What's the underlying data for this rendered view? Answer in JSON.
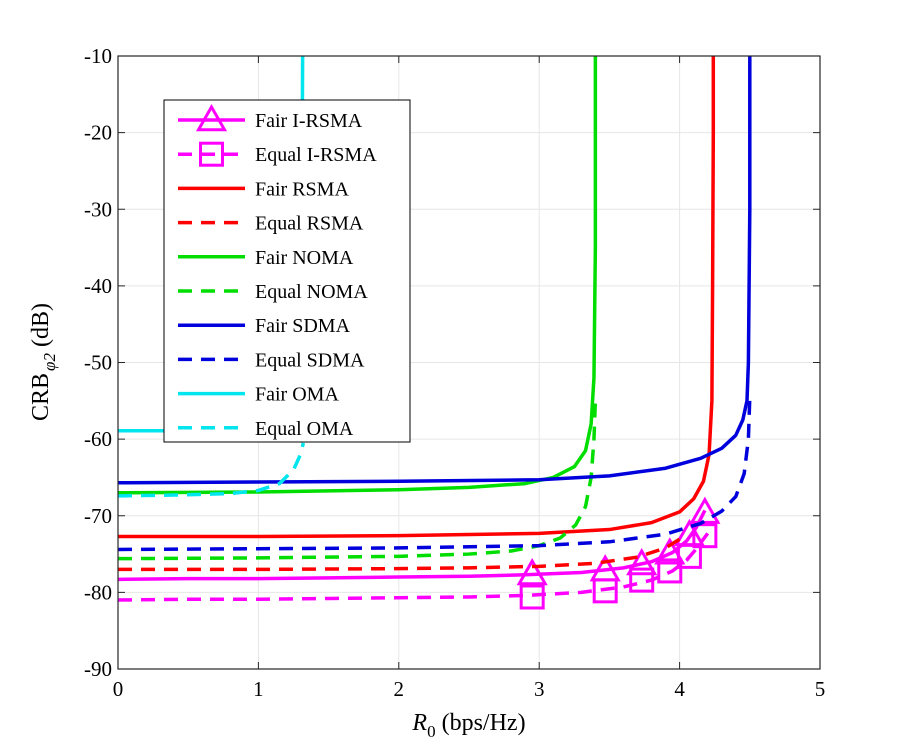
{
  "chart_data": {
    "type": "line",
    "title": "",
    "xlabel": {
      "symbol": "R",
      "subscript": "0",
      "unit": "(bps/Hz)"
    },
    "ylabel": {
      "prefix": "CRB",
      "subscript": "φ2",
      "unit": "(dB)"
    },
    "xlim": [
      0,
      5
    ],
    "ylim": [
      -90,
      -10
    ],
    "xticks": [
      0,
      1,
      2,
      3,
      4,
      5
    ],
    "yticks": [
      -10,
      -20,
      -30,
      -40,
      -50,
      -60,
      -70,
      -80,
      -90
    ],
    "grid": true,
    "legend_position": "top-left",
    "series": [
      {
        "name": "Fair I-RSMA",
        "color": "#ff00ff",
        "dash": "solid",
        "marker": "triangle",
        "x": [
          0,
          0.5,
          1,
          1.5,
          2,
          2.5,
          2.9,
          3.3,
          3.6,
          3.8,
          3.95,
          4.05,
          4.12,
          4.18
        ],
        "y": [
          -78.3,
          -78.2,
          -78.2,
          -78.1,
          -78.0,
          -77.9,
          -77.7,
          -77.4,
          -76.8,
          -76.0,
          -74.8,
          -73.3,
          -71.5,
          -69.3
        ],
        "markers_x": [
          2.95,
          3.47,
          3.73,
          3.93,
          4.07,
          4.18
        ],
        "markers_y": [
          -77.6,
          -77.1,
          -76.3,
          -74.9,
          -72.5,
          -69.6
        ]
      },
      {
        "name": "Equal I-RSMA",
        "color": "#ff00ff",
        "dash": "dash",
        "marker": "square",
        "x": [
          0,
          0.5,
          1,
          1.5,
          2,
          2.5,
          2.9,
          3.3,
          3.6,
          3.8,
          3.95,
          4.05,
          4.12,
          4.2
        ],
        "y": [
          -81.0,
          -80.9,
          -80.9,
          -80.8,
          -80.7,
          -80.6,
          -80.4,
          -80.0,
          -79.3,
          -78.4,
          -77.2,
          -75.8,
          -74.3,
          -72.3
        ],
        "markers_x": [
          2.95,
          3.47,
          3.73,
          3.93,
          4.07,
          4.18
        ],
        "markers_y": [
          -80.6,
          -79.8,
          -78.4,
          -77.2,
          -75.3,
          -72.6
        ]
      },
      {
        "name": "Fair RSMA",
        "color": "#ff0000",
        "dash": "solid",
        "marker": "none",
        "x": [
          0,
          1,
          2,
          3,
          3.5,
          3.8,
          4.0,
          4.1,
          4.17,
          4.21,
          4.23,
          4.235,
          4.24,
          4.24
        ],
        "y": [
          -72.7,
          -72.7,
          -72.6,
          -72.3,
          -71.8,
          -70.9,
          -69.5,
          -67.8,
          -65.5,
          -62.0,
          -55.0,
          -40.0,
          -20.0,
          -10.0
        ]
      },
      {
        "name": "Equal RSMA",
        "color": "#ff0000",
        "dash": "dash",
        "marker": "none",
        "x": [
          0,
          1,
          2,
          2.5,
          3,
          3.4,
          3.7,
          3.9,
          4.05
        ],
        "y": [
          -77.0,
          -77.0,
          -76.9,
          -76.8,
          -76.6,
          -76.2,
          -75.4,
          -74.2,
          -72.5
        ]
      },
      {
        "name": "Fair NOMA",
        "color": "#00dd00",
        "dash": "solid",
        "marker": "none",
        "x": [
          0,
          1,
          2,
          2.5,
          2.9,
          3.1,
          3.25,
          3.33,
          3.37,
          3.39,
          3.4,
          3.4
        ],
        "y": [
          -67.0,
          -66.9,
          -66.6,
          -66.3,
          -65.8,
          -65.0,
          -63.6,
          -61.5,
          -58.0,
          -52.0,
          -35.0,
          -10.0
        ]
      },
      {
        "name": "Equal NOMA",
        "color": "#00dd00",
        "dash": "dash",
        "marker": "none",
        "x": [
          0,
          1,
          2,
          2.5,
          2.8,
          3.0,
          3.15,
          3.26,
          3.33,
          3.37,
          3.39,
          3.4
        ],
        "y": [
          -75.6,
          -75.5,
          -75.3,
          -75.0,
          -74.6,
          -73.9,
          -72.9,
          -71.2,
          -68.8,
          -65.0,
          -60.0,
          -55.0
        ]
      },
      {
        "name": "Fair SDMA",
        "color": "#0000dd",
        "dash": "solid",
        "marker": "none",
        "x": [
          0,
          1,
          2,
          3,
          3.5,
          3.9,
          4.15,
          4.3,
          4.4,
          4.45,
          4.48,
          4.49,
          4.5,
          4.5
        ],
        "y": [
          -65.7,
          -65.6,
          -65.5,
          -65.3,
          -64.8,
          -63.8,
          -62.5,
          -61.2,
          -59.5,
          -57.5,
          -55.0,
          -50.0,
          -30.0,
          -10.0
        ]
      },
      {
        "name": "Equal SDMA",
        "color": "#0000dd",
        "dash": "dash",
        "marker": "none",
        "x": [
          0,
          1,
          2,
          3,
          3.5,
          3.9,
          4.15,
          4.3,
          4.4,
          4.46,
          4.49,
          4.5
        ],
        "y": [
          -74.4,
          -74.3,
          -74.2,
          -73.9,
          -73.4,
          -72.4,
          -71.0,
          -69.4,
          -67.5,
          -64.5,
          -60.0,
          -54.5
        ]
      },
      {
        "name": "Fair OMA",
        "color": "#00e5ee",
        "dash": "solid",
        "marker": "none",
        "x": [
          0,
          0.4,
          0.8,
          1.0,
          1.15,
          1.25,
          1.29,
          1.31,
          1.315
        ],
        "y": [
          -58.9,
          -58.9,
          -58.8,
          -58.6,
          -58.0,
          -56.0,
          -50.0,
          -30.0,
          -10.0
        ]
      },
      {
        "name": "Equal OMA",
        "color": "#00e5ee",
        "dash": "dash",
        "marker": "none",
        "x": [
          0,
          0.4,
          0.8,
          1.0,
          1.15,
          1.25,
          1.3,
          1.32
        ],
        "y": [
          -67.4,
          -67.3,
          -67.1,
          -66.7,
          -65.8,
          -64.0,
          -62.0,
          -60.5
        ]
      }
    ]
  }
}
